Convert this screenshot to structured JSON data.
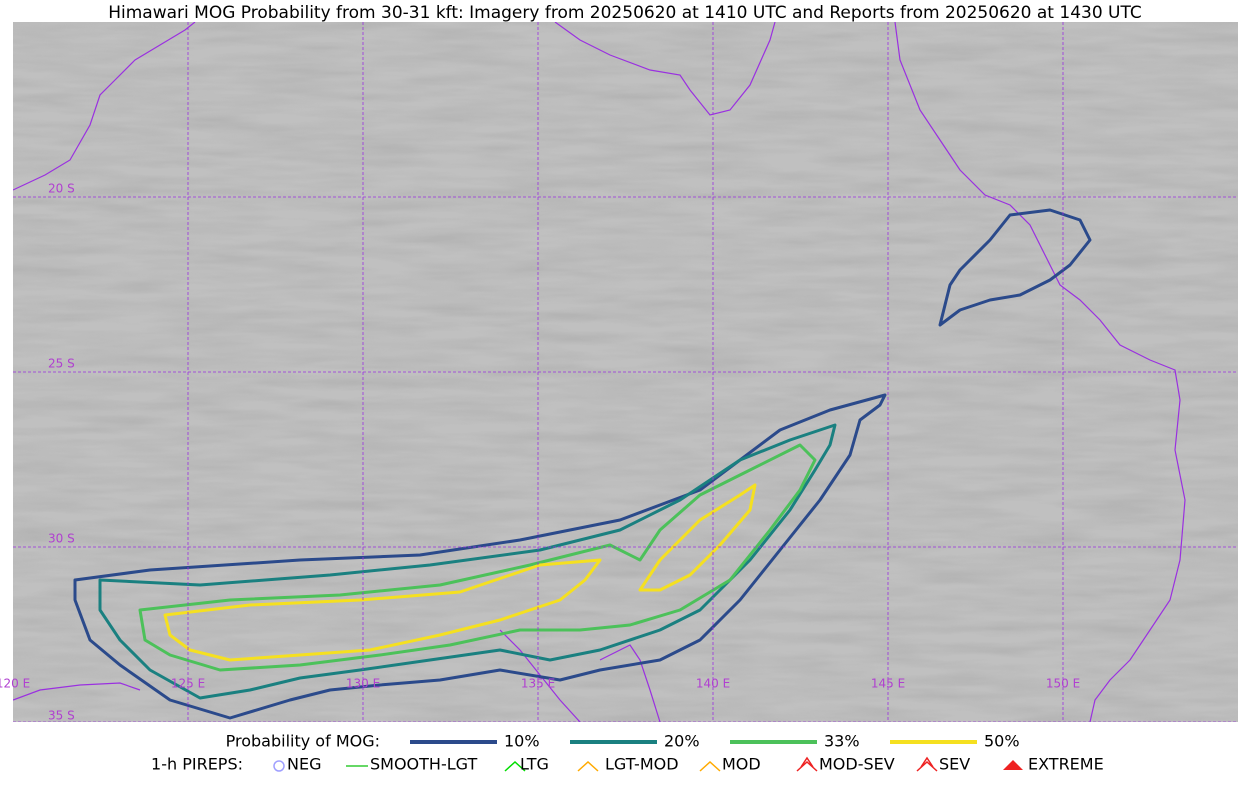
{
  "title": "Himawari MOG Probability from 30-31 kft: Imagery from 20250620 at 1410 UTC and Reports from 20250620 at 1430 UTC",
  "map": {
    "lat_labels": [
      "20 S",
      "25 S",
      "30 S",
      "35 S"
    ],
    "lon_labels": [
      "120 E",
      "125 E",
      "130 E",
      "135 E",
      "140 E",
      "145 E",
      "150 E"
    ]
  },
  "legend": {
    "label": "Probability of MOG:",
    "items": [
      "10%",
      "20%",
      "33%",
      "50%"
    ]
  },
  "pireps": {
    "label": "1-h PIREPS:",
    "items": [
      "NEG",
      "SMOOTH-LGT",
      "LTG",
      "LGT-MOD",
      "MOD",
      "MOD-SEV",
      "SEV",
      "EXTREME"
    ]
  }
}
